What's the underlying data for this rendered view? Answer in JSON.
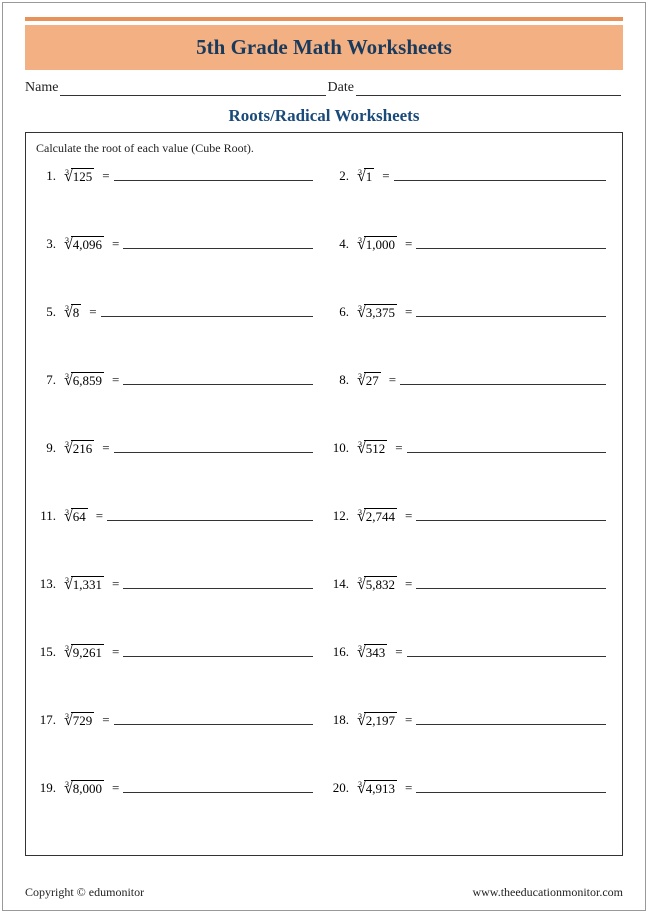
{
  "colors": {
    "accent_rule": "#e8915a",
    "title_band_bg": "#f3b183",
    "title_text": "#1a3a5c",
    "subtitle_text": "#1a4a7a",
    "border": "#333333",
    "page_border": "#999999",
    "text": "#222222"
  },
  "typography": {
    "title_font": "Georgia, serif",
    "title_size_pt": 16,
    "body_font": "Times New Roman, serif",
    "body_size_pt": 10
  },
  "header": {
    "title": "5th Grade Math Worksheets",
    "name_label": "Name",
    "date_label": "Date"
  },
  "subtitle": "Roots/Radical Worksheets",
  "instruction": "Calculate the root of each value (Cube Root).",
  "root_index": "3",
  "equals": "=",
  "problems": [
    {
      "n": "1.",
      "radicand": "125"
    },
    {
      "n": "2.",
      "radicand": "1"
    },
    {
      "n": "3.",
      "radicand": "4,096"
    },
    {
      "n": "4.",
      "radicand": "1,000"
    },
    {
      "n": "5.",
      "radicand": "8"
    },
    {
      "n": "6.",
      "radicand": "3,375"
    },
    {
      "n": "7.",
      "radicand": "6,859"
    },
    {
      "n": "8.",
      "radicand": "27"
    },
    {
      "n": "9.",
      "radicand": "216"
    },
    {
      "n": "10.",
      "radicand": "512"
    },
    {
      "n": "11.",
      "radicand": "64"
    },
    {
      "n": "12.",
      "radicand": "2,744"
    },
    {
      "n": "13.",
      "radicand": "1,331"
    },
    {
      "n": "14.",
      "radicand": "5,832"
    },
    {
      "n": "15.",
      "radicand": "9,261"
    },
    {
      "n": "16.",
      "radicand": "343"
    },
    {
      "n": "17.",
      "radicand": "729"
    },
    {
      "n": "18.",
      "radicand": "2,197"
    },
    {
      "n": "19.",
      "radicand": "8,000"
    },
    {
      "n": "20.",
      "radicand": "4,913"
    }
  ],
  "footer": {
    "copyright": "Copyright © edumonitor",
    "url": "www.theeducationmonitor.com"
  }
}
